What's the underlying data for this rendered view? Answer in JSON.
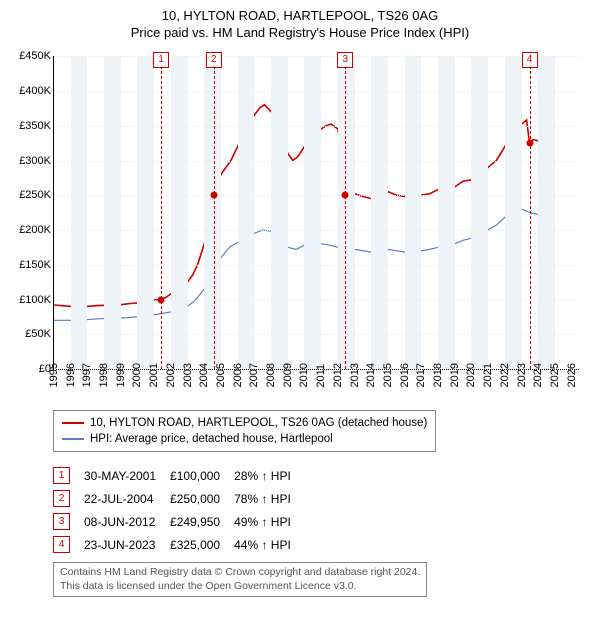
{
  "header": {
    "title": "10, HYLTON ROAD, HARTLEPOOL, TS26 0AG",
    "subtitle": "Price paid vs. HM Land Registry's House Price Index (HPI)"
  },
  "chart": {
    "type": "line",
    "background_color": "#ffffff",
    "plot_bg": "#ffffff",
    "band_bg": "#eef3f8",
    "axis_color": "#000000",
    "grid_color": "#eeeeee",
    "xlim": [
      1995,
      2026.5
    ],
    "ylim": [
      0,
      450000
    ],
    "ytick_step": 50000,
    "yticks": [
      "£0",
      "£50K",
      "£100K",
      "£150K",
      "£200K",
      "£250K",
      "£300K",
      "£350K",
      "£400K",
      "£450K"
    ],
    "xticks": [
      1995,
      1996,
      1997,
      1998,
      1999,
      2000,
      2001,
      2002,
      2003,
      2004,
      2005,
      2006,
      2007,
      2008,
      2009,
      2010,
      2011,
      2012,
      2013,
      2014,
      2015,
      2016,
      2017,
      2018,
      2019,
      2020,
      2021,
      2022,
      2023,
      2024,
      2025,
      2026
    ],
    "series": [
      {
        "name": "10, HYLTON ROAD, HARTLEPOOL, TS26 0AG (detached house)",
        "color": "#cc0000",
        "width": 1.6,
        "points": [
          [
            1995.0,
            92000
          ],
          [
            1995.5,
            91000
          ],
          [
            1996.0,
            90000
          ],
          [
            1996.5,
            90000
          ],
          [
            1997.0,
            90000
          ],
          [
            1997.5,
            91000
          ],
          [
            1998.0,
            91500
          ],
          [
            1998.5,
            92000
          ],
          [
            1999.0,
            92500
          ],
          [
            1999.5,
            94000
          ],
          [
            2000.0,
            95000
          ],
          [
            2000.5,
            97000
          ],
          [
            2001.0,
            99000
          ],
          [
            2001.42,
            100000
          ],
          [
            2001.7,
            103000
          ],
          [
            2002.0,
            108000
          ],
          [
            2002.3,
            110000
          ],
          [
            2002.6,
            112000
          ],
          [
            2003.0,
            125000
          ],
          [
            2003.3,
            135000
          ],
          [
            2003.6,
            150000
          ],
          [
            2004.0,
            180000
          ],
          [
            2004.3,
            210000
          ],
          [
            2004.56,
            250000
          ],
          [
            2004.8,
            265000
          ],
          [
            2005.0,
            280000
          ],
          [
            2005.3,
            290000
          ],
          [
            2005.6,
            300000
          ],
          [
            2006.0,
            320000
          ],
          [
            2006.3,
            335000
          ],
          [
            2006.6,
            350000
          ],
          [
            2007.0,
            365000
          ],
          [
            2007.3,
            375000
          ],
          [
            2007.6,
            380000
          ],
          [
            2008.0,
            370000
          ],
          [
            2008.3,
            360000
          ],
          [
            2008.6,
            340000
          ],
          [
            2009.0,
            310000
          ],
          [
            2009.3,
            300000
          ],
          [
            2009.6,
            305000
          ],
          [
            2010.0,
            320000
          ],
          [
            2010.3,
            330000
          ],
          [
            2010.6,
            340000
          ],
          [
            2011.0,
            345000
          ],
          [
            2011.3,
            350000
          ],
          [
            2011.6,
            352000
          ],
          [
            2012.0,
            345000
          ],
          [
            2012.3,
            300000
          ],
          [
            2012.44,
            249950
          ],
          [
            2012.7,
            248000
          ],
          [
            2013.0,
            252000
          ],
          [
            2013.5,
            248000
          ],
          [
            2014.0,
            245000
          ],
          [
            2014.5,
            250000
          ],
          [
            2015.0,
            255000
          ],
          [
            2015.5,
            250000
          ],
          [
            2016.0,
            248000
          ],
          [
            2016.5,
            250000
          ],
          [
            2017.0,
            250000
          ],
          [
            2017.5,
            252000
          ],
          [
            2018.0,
            258000
          ],
          [
            2018.5,
            260000
          ],
          [
            2019.0,
            262000
          ],
          [
            2019.5,
            270000
          ],
          [
            2020.0,
            272000
          ],
          [
            2020.5,
            278000
          ],
          [
            2021.0,
            290000
          ],
          [
            2021.5,
            300000
          ],
          [
            2022.0,
            320000
          ],
          [
            2022.5,
            340000
          ],
          [
            2023.0,
            352000
          ],
          [
            2023.3,
            358000
          ],
          [
            2023.48,
            325000
          ],
          [
            2023.7,
            330000
          ],
          [
            2024.0,
            328000
          ],
          [
            2024.3,
            325000
          ]
        ]
      },
      {
        "name": "HPI: Average price, detached house, Hartlepool",
        "color": "#5a7fbf",
        "width": 1.2,
        "points": [
          [
            1995.0,
            70000
          ],
          [
            1995.5,
            70000
          ],
          [
            1996.0,
            70000
          ],
          [
            1996.5,
            71000
          ],
          [
            1997.0,
            71000
          ],
          [
            1997.5,
            72000
          ],
          [
            1998.0,
            72500
          ],
          [
            1998.5,
            73000
          ],
          [
            1999.0,
            73500
          ],
          [
            1999.5,
            74000
          ],
          [
            2000.0,
            75000
          ],
          [
            2000.5,
            77000
          ],
          [
            2001.0,
            78000
          ],
          [
            2001.5,
            80000
          ],
          [
            2002.0,
            82000
          ],
          [
            2002.5,
            85000
          ],
          [
            2003.0,
            90000
          ],
          [
            2003.5,
            100000
          ],
          [
            2004.0,
            115000
          ],
          [
            2004.5,
            140000
          ],
          [
            2005.0,
            160000
          ],
          [
            2005.5,
            175000
          ],
          [
            2006.0,
            182000
          ],
          [
            2006.5,
            188000
          ],
          [
            2007.0,
            195000
          ],
          [
            2007.5,
            200000
          ],
          [
            2008.0,
            198000
          ],
          [
            2008.5,
            190000
          ],
          [
            2009.0,
            175000
          ],
          [
            2009.5,
            172000
          ],
          [
            2010.0,
            178000
          ],
          [
            2010.5,
            180000
          ],
          [
            2011.0,
            180000
          ],
          [
            2011.5,
            178000
          ],
          [
            2012.0,
            175000
          ],
          [
            2012.5,
            168000
          ],
          [
            2013.0,
            172000
          ],
          [
            2013.5,
            170000
          ],
          [
            2014.0,
            168000
          ],
          [
            2014.5,
            170000
          ],
          [
            2015.0,
            172000
          ],
          [
            2015.5,
            170000
          ],
          [
            2016.0,
            168000
          ],
          [
            2016.5,
            170000
          ],
          [
            2017.0,
            170000
          ],
          [
            2017.5,
            172000
          ],
          [
            2018.0,
            175000
          ],
          [
            2018.5,
            178000
          ],
          [
            2019.0,
            180000
          ],
          [
            2019.5,
            185000
          ],
          [
            2020.0,
            188000
          ],
          [
            2020.5,
            192000
          ],
          [
            2021.0,
            200000
          ],
          [
            2021.5,
            207000
          ],
          [
            2022.0,
            218000
          ],
          [
            2022.5,
            232000
          ],
          [
            2023.0,
            230000
          ],
          [
            2023.5,
            225000
          ],
          [
            2024.0,
            222000
          ],
          [
            2024.3,
            220000
          ]
        ]
      }
    ],
    "markers": [
      {
        "n": 1,
        "x": 2001.42,
        "y": 100000
      },
      {
        "n": 2,
        "x": 2004.56,
        "y": 250000
      },
      {
        "n": 3,
        "x": 2012.44,
        "y": 249950
      },
      {
        "n": 4,
        "x": 2023.48,
        "y": 325000
      }
    ],
    "marker_line_color": "#cc0000",
    "marker_box_border": "#cc0000",
    "label_fontsize": 11
  },
  "legend": {
    "rows": [
      {
        "color": "#cc0000",
        "text": "10, HYLTON ROAD, HARTLEPOOL, TS26 0AG (detached house)"
      },
      {
        "color": "#5a7fbf",
        "text": "HPI: Average price, detached house, Hartlepool"
      }
    ]
  },
  "sales": [
    {
      "n": "1",
      "date": "30-MAY-2001",
      "price": "£100,000",
      "delta": "28% ↑ HPI"
    },
    {
      "n": "2",
      "date": "22-JUL-2004",
      "price": "£250,000",
      "delta": "78% ↑ HPI"
    },
    {
      "n": "3",
      "date": "08-JUN-2012",
      "price": "£249,950",
      "delta": "49% ↑ HPI"
    },
    {
      "n": "4",
      "date": "23-JUN-2023",
      "price": "£325,000",
      "delta": "44% ↑ HPI"
    }
  ],
  "footer": {
    "line1": "Contains HM Land Registry data © Crown copyright and database right 2024.",
    "line2": "This data is licensed under the Open Government Licence v3.0."
  }
}
